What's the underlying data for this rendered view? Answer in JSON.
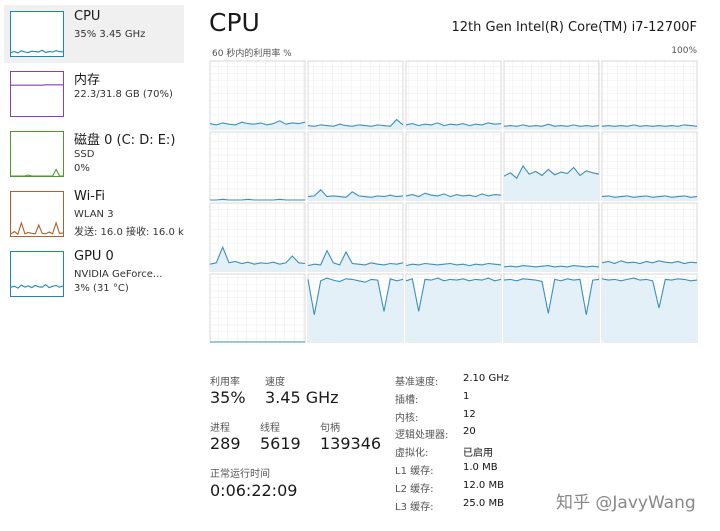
{
  "sidebar": [
    {
      "name": "CPU",
      "lines": [
        "35% 3.45 GHz"
      ],
      "color": "#1a86c0",
      "selected": true,
      "values": [
        8,
        10,
        7,
        12,
        9,
        8,
        11,
        10,
        9,
        13,
        8,
        10,
        9,
        12,
        10,
        9
      ]
    },
    {
      "name": "内存",
      "lines": [
        "22.3/31.8 GB (70%)"
      ],
      "color": "#8b3fa8",
      "selected": false,
      "values": [
        70,
        70,
        70,
        70,
        70,
        70,
        70,
        70,
        70,
        70,
        71,
        71,
        71,
        71,
        71,
        71
      ]
    },
    {
      "name": "磁盘 0 (C: D: E:)",
      "lines": [
        "SSD",
        "0%"
      ],
      "color": "#4c9a2a",
      "selected": false,
      "values": [
        0,
        0,
        0,
        0,
        0,
        2,
        0,
        0,
        0,
        0,
        0,
        0,
        0,
        15,
        0,
        0
      ]
    },
    {
      "name": "Wi-Fi",
      "lines": [
        "WLAN 3",
        "发送: 16.0 接收: 16.0 k"
      ],
      "color": "#b0602c",
      "selected": false,
      "values": [
        5,
        10,
        4,
        30,
        5,
        8,
        6,
        5,
        25,
        6,
        5,
        9,
        5,
        30,
        6,
        7
      ]
    },
    {
      "name": "GPU 0",
      "lines": [
        "NVIDIA GeForce...",
        "3% (31 °C)"
      ],
      "color": "#1a86c0",
      "selected": false,
      "values": [
        20,
        22,
        18,
        25,
        20,
        23,
        19,
        24,
        21,
        20,
        26,
        19,
        22,
        24,
        20,
        23
      ]
    }
  ],
  "header": {
    "title": "CPU",
    "model": "12th Gen Intel(R) Core(TM) i7-12700F"
  },
  "graph": {
    "label": "60 秒内的利用率 %",
    "max_label": "100%",
    "color": "#3a8fbf",
    "fill": "#e4f0f8",
    "ymax": 100,
    "cores": [
      [
        8,
        6,
        9,
        7,
        6,
        10,
        8,
        7,
        9,
        6,
        8,
        12,
        7,
        9,
        8,
        10
      ],
      [
        5,
        4,
        6,
        5,
        4,
        7,
        5,
        4,
        6,
        5,
        4,
        6,
        5,
        4,
        14,
        6
      ],
      [
        6,
        8,
        5,
        7,
        6,
        9,
        5,
        7,
        6,
        8,
        5,
        7,
        6,
        9,
        7,
        8
      ],
      [
        4,
        5,
        4,
        6,
        4,
        5,
        4,
        7,
        4,
        5,
        4,
        6,
        4,
        5,
        4,
        5
      ],
      [
        4,
        5,
        4,
        5,
        4,
        6,
        4,
        5,
        4,
        5,
        4,
        5,
        4,
        6,
        5,
        4
      ],
      [
        0,
        0,
        1,
        0,
        0,
        0,
        1,
        0,
        0,
        0,
        0,
        1,
        0,
        0,
        0,
        0
      ],
      [
        5,
        6,
        15,
        5,
        6,
        5,
        4,
        12,
        6,
        5,
        4,
        6,
        5,
        7,
        5,
        6
      ],
      [
        6,
        8,
        5,
        10,
        7,
        6,
        9,
        5,
        8,
        6,
        7,
        5,
        9,
        6,
        8,
        7
      ],
      [
        35,
        40,
        32,
        50,
        38,
        42,
        36,
        45,
        37,
        41,
        39,
        48,
        36,
        43,
        40,
        38
      ],
      [
        5,
        6,
        4,
        5,
        6,
        4,
        5,
        6,
        4,
        5,
        6,
        4,
        5,
        6,
        4,
        5
      ],
      [
        10,
        12,
        35,
        12,
        14,
        11,
        13,
        10,
        12,
        11,
        13,
        10,
        12,
        22,
        12,
        11
      ],
      [
        8,
        10,
        9,
        30,
        12,
        9,
        28,
        11,
        10,
        9,
        12,
        10,
        9,
        11,
        10,
        12
      ],
      [
        8,
        10,
        9,
        11,
        10,
        9,
        10,
        11,
        9,
        10,
        8,
        10,
        9,
        11,
        10,
        9
      ],
      [
        6,
        7,
        6,
        8,
        7,
        6,
        7,
        8,
        6,
        7,
        6,
        8,
        7,
        6,
        7,
        6
      ],
      [
        12,
        14,
        11,
        15,
        12,
        13,
        11,
        14,
        12,
        15,
        13,
        12,
        14,
        11,
        13,
        12
      ],
      [
        0,
        0,
        0,
        0,
        0,
        0,
        0,
        0,
        0,
        0,
        0,
        0,
        0,
        0,
        0,
        0
      ],
      [
        92,
        40,
        90,
        94,
        91,
        89,
        93,
        92,
        90,
        88,
        92,
        91,
        45,
        93,
        90,
        92
      ],
      [
        90,
        93,
        45,
        92,
        91,
        94,
        90,
        92,
        91,
        93,
        90,
        92,
        91,
        94,
        90,
        92
      ],
      [
        91,
        92,
        90,
        93,
        92,
        91,
        89,
        42,
        92,
        90,
        93,
        91,
        92,
        40,
        91,
        92
      ],
      [
        93,
        91,
        92,
        90,
        92,
        94,
        91,
        92,
        90,
        50,
        92,
        91,
        93,
        92,
        90,
        91
      ]
    ]
  },
  "stats": {
    "util": {
      "label": "利用率",
      "value": "35%"
    },
    "speed": {
      "label": "速度",
      "value": "3.45 GHz"
    },
    "processes": {
      "label": "进程",
      "value": "289"
    },
    "threads": {
      "label": "线程",
      "value": "5619"
    },
    "handles": {
      "label": "句柄",
      "value": "139346"
    },
    "uptime": {
      "label": "正常运行时间",
      "value": "0:06:22:09"
    }
  },
  "specs": [
    [
      "基准速度:",
      "2.10 GHz"
    ],
    [
      "插槽:",
      "1"
    ],
    [
      "内核:",
      "12"
    ],
    [
      "逻辑处理器:",
      "20"
    ],
    [
      "虚拟化:",
      "已启用"
    ],
    [
      "L1 缓存:",
      "1.0 MB"
    ],
    [
      "L2 缓存:",
      "12.0 MB"
    ],
    [
      "L3 缓存:",
      "25.0 MB"
    ]
  ],
  "watermark": "知乎 @JavyWang"
}
